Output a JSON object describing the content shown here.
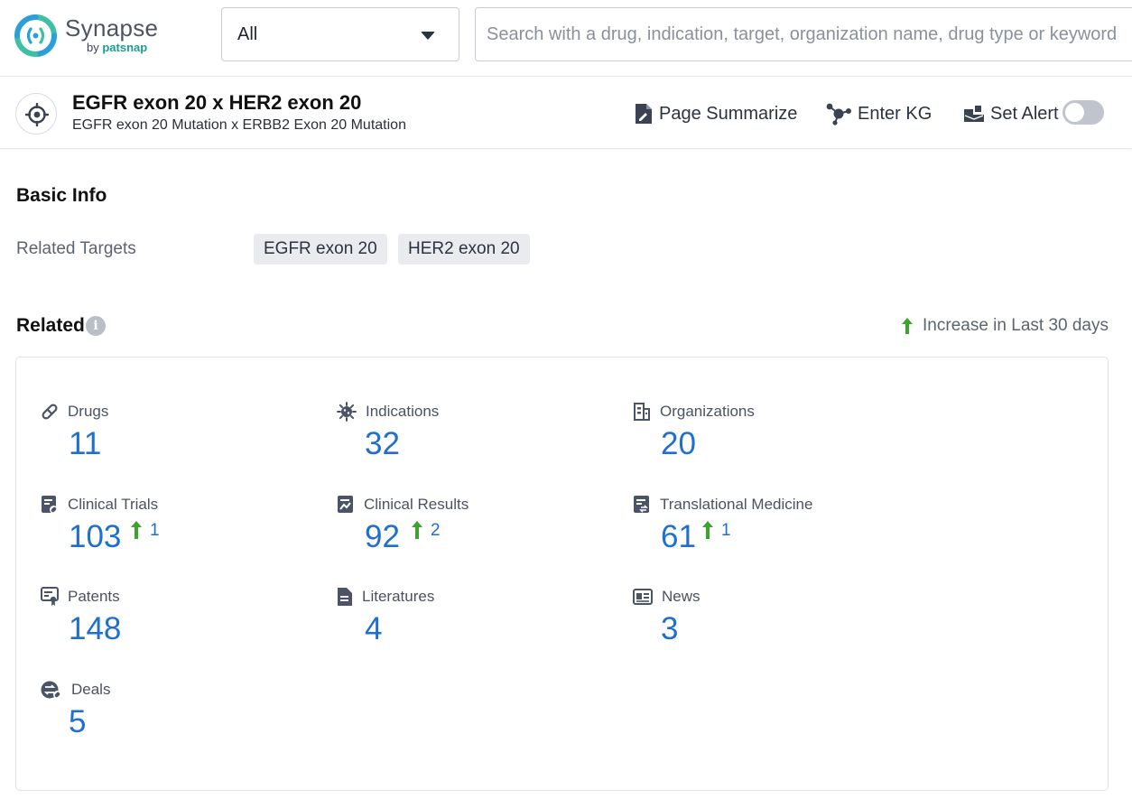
{
  "app": {
    "logo_name": "Synapse",
    "logo_by": "by",
    "logo_brand": "patsnap"
  },
  "search": {
    "scope_value": "All",
    "placeholder": "Search with a drug, indication, target, organization name, drug type or keyword",
    "value": ""
  },
  "entity": {
    "title": "EGFR exon 20 x HER2 exon 20",
    "subtitle": "EGFR exon 20 Mutation x ERBB2 Exon 20 Mutation",
    "icon": "target-icon"
  },
  "actions": {
    "summarize_label": "Page Summarize",
    "kg_label": "Enter KG",
    "alert_label": "Set Alert",
    "alert_enabled": false
  },
  "basic_info": {
    "title": "Basic Info",
    "related_targets_label": "Related Targets",
    "targets": [
      "EGFR exon 20",
      "HER2 exon 20"
    ]
  },
  "related": {
    "title": "Related",
    "info_glyph": "i",
    "legend_label": "Increase in Last 30 days",
    "stats": [
      {
        "name": "Drugs",
        "count": "11",
        "icon": "pill-icon"
      },
      {
        "name": "Indications",
        "count": "32",
        "icon": "virus-icon"
      },
      {
        "name": "Organizations",
        "count": "20",
        "icon": "building-icon"
      },
      {
        "name": "Clinical Trials",
        "count": "103",
        "increase": "1",
        "icon": "clinical-trial-icon"
      },
      {
        "name": "Clinical Results",
        "count": "92",
        "increase": "2",
        "icon": "clinical-result-icon"
      },
      {
        "name": "Translational Medicine",
        "count": "61",
        "increase": "1",
        "icon": "translational-icon"
      },
      {
        "name": "Patents",
        "count": "148",
        "icon": "patent-icon"
      },
      {
        "name": "Literatures",
        "count": "4",
        "icon": "document-icon"
      },
      {
        "name": "News",
        "count": "3",
        "icon": "news-icon"
      },
      {
        "name": "Deals",
        "count": "5",
        "icon": "deal-icon"
      }
    ]
  },
  "colors": {
    "accent_blue": "#1f6fd0",
    "increase_green": "#3aa52a",
    "icon_dark": "#4a5466"
  }
}
